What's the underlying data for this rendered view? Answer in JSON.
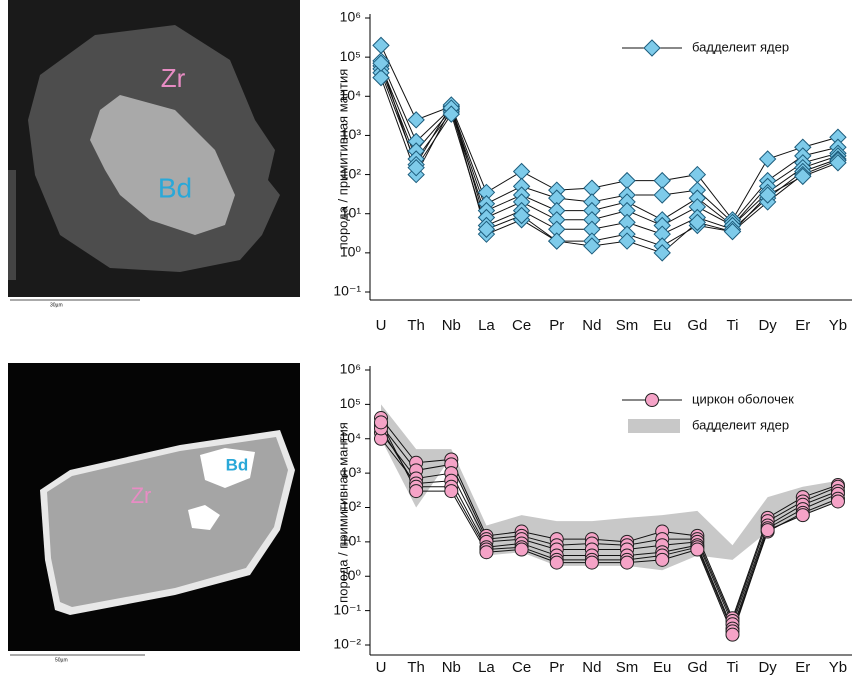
{
  "micrographs": [
    {
      "labels": [
        "Zr",
        "Bd"
      ],
      "scale": "30µm"
    },
    {
      "labels": [
        "Zr",
        "Bd"
      ],
      "scale": "50µm"
    }
  ],
  "chart_data": [
    {
      "type": "line",
      "log": true,
      "ylabel": "порода / примитивная мантия",
      "categories": [
        "U",
        "Th",
        "Nb",
        "La",
        "Ce",
        "Pr",
        "Nd",
        "Sm",
        "Eu",
        "Gd",
        "Ti",
        "Dy",
        "Er",
        "Yb"
      ],
      "ylim": [
        0.1,
        1000000
      ],
      "yticks": [
        {
          "value": 0.1,
          "label": "10⁻¹"
        },
        {
          "value": 1,
          "label": "10⁰"
        },
        {
          "value": 10,
          "label": "10¹"
        },
        {
          "value": 100,
          "label": "10²"
        },
        {
          "value": 1000,
          "label": "10³"
        },
        {
          "value": 10000,
          "label": "10⁴"
        },
        {
          "value": 100000,
          "label": "10⁵"
        },
        {
          "value": 1000000,
          "label": "10⁶"
        }
      ],
      "marker": "diamond",
      "color": "#7ecbea",
      "legend": [
        {
          "label": "бадделеит ядер",
          "marker": "diamond"
        }
      ],
      "series": [
        {
          "values": [
            200000,
            2500,
            5500,
            35,
            120,
            40,
            45,
            70,
            70,
            100,
            7,
            250,
            500,
            900
          ]
        },
        {
          "values": [
            80000,
            700,
            5000,
            18,
            50,
            25,
            20,
            30,
            30,
            40,
            6,
            70,
            300,
            500
          ]
        },
        {
          "values": [
            60000,
            400,
            4500,
            12,
            30,
            12,
            12,
            20,
            7,
            25,
            5,
            50,
            200,
            350
          ]
        },
        {
          "values": [
            50000,
            250,
            4000,
            8,
            20,
            7,
            7,
            12,
            5,
            15,
            5,
            35,
            150,
            300
          ]
        },
        {
          "values": [
            40000,
            180,
            6000,
            5,
            12,
            4,
            4,
            6,
            3,
            8,
            4,
            25,
            120,
            250
          ]
        },
        {
          "values": [
            30000,
            100,
            5000,
            3,
            7,
            2,
            2,
            3,
            1.5,
            5,
            3.5,
            20,
            100,
            230
          ]
        },
        {
          "values": [
            70000,
            150,
            3500,
            4,
            9,
            2,
            1.5,
            2,
            1,
            6,
            3.5,
            30,
            90,
            200
          ]
        }
      ]
    },
    {
      "type": "line",
      "log": true,
      "ylabel": "порода / примитивная мантия",
      "categories": [
        "U",
        "Th",
        "Nb",
        "La",
        "Ce",
        "Pr",
        "Nd",
        "Sm",
        "Eu",
        "Gd",
        "Ti",
        "Dy",
        "Er",
        "Yb"
      ],
      "ylim": [
        0.01,
        1000000
      ],
      "yticks": [
        {
          "value": 0.01,
          "label": "10⁻²"
        },
        {
          "value": 0.1,
          "label": "10⁻¹"
        },
        {
          "value": 1,
          "label": "10⁰"
        },
        {
          "value": 10,
          "label": "10¹"
        },
        {
          "value": 100,
          "label": "10²"
        },
        {
          "value": 1000,
          "label": "10³"
        },
        {
          "value": 10000,
          "label": "10⁴"
        },
        {
          "value": 100000,
          "label": "10⁵"
        },
        {
          "value": 1000000,
          "label": "10⁶"
        }
      ],
      "marker": "circle",
      "color": "#f5a3c7",
      "band": {
        "color": "#c8c8c8",
        "upper": [
          100000,
          5000,
          5000,
          30,
          60,
          40,
          40,
          50,
          60,
          80,
          8,
          200,
          400,
          600
        ],
        "lower": [
          10000,
          100,
          3000,
          4,
          5,
          2,
          2,
          2,
          1.5,
          4,
          3,
          20,
          60,
          150
        ]
      },
      "legend": [
        {
          "label": "циркон оболочек",
          "marker": "circle"
        },
        {
          "label": "бадделеит ядер",
          "marker": "band"
        }
      ],
      "series": [
        {
          "values": [
            40000,
            2000,
            2500,
            15,
            20,
            12,
            12,
            10,
            20,
            15,
            0.06,
            50,
            200,
            450
          ]
        },
        {
          "values": [
            25000,
            1200,
            1800,
            12,
            15,
            8,
            9,
            8,
            12,
            12,
            0.05,
            40,
            150,
            400
          ]
        },
        {
          "values": [
            15000,
            700,
            1000,
            10,
            12,
            6,
            6,
            6,
            8,
            10,
            0.04,
            30,
            120,
            300
          ]
        },
        {
          "values": [
            10000,
            500,
            600,
            7,
            9,
            4,
            4,
            4,
            5,
            8,
            0.03,
            25,
            90,
            250
          ]
        },
        {
          "values": [
            20000,
            400,
            400,
            6,
            7,
            3,
            3,
            3,
            4,
            7,
            0.025,
            20,
            70,
            180
          ]
        },
        {
          "values": [
            30000,
            300,
            300,
            5,
            6,
            2.5,
            2.5,
            2.5,
            3,
            6,
            0.02,
            22,
            60,
            150
          ]
        }
      ]
    }
  ]
}
